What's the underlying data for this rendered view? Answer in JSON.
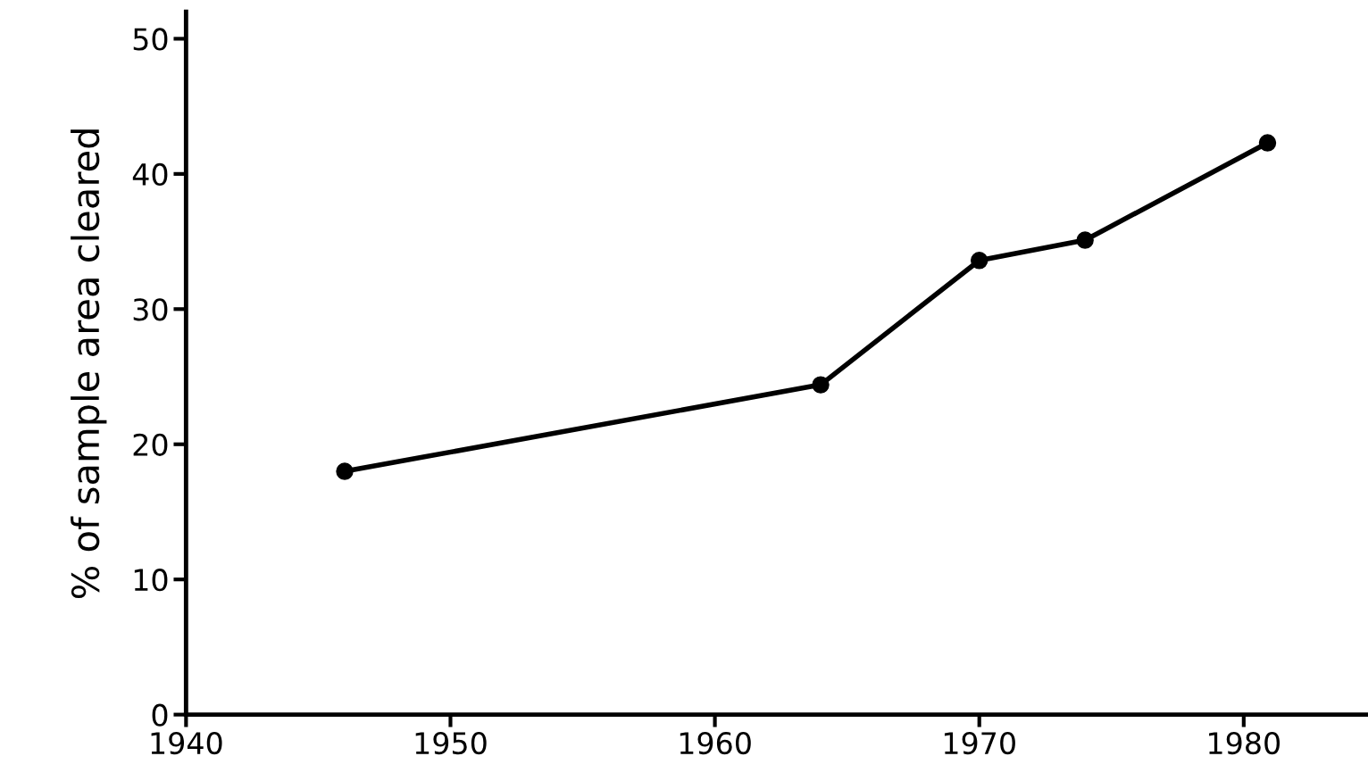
{
  "chart_data": {
    "type": "line",
    "ylabel": "% of sample area cleared",
    "x": [
      1946,
      1964,
      1970,
      1974,
      1980.9
    ],
    "series": [
      {
        "color": "#000000",
        "values": [
          18.0,
          24.4,
          33.6,
          35.1,
          42.3
        ]
      }
    ],
    "xlim": [
      1940,
      1984.7
    ],
    "xticks": [
      1940,
      1950,
      1960,
      1970,
      1980
    ],
    "ylim": [
      0,
      52
    ],
    "yticks": [
      0,
      10,
      20,
      30,
      40,
      50
    ],
    "marker": "circle",
    "line_style": "solid",
    "grid": false,
    "legend": false
  }
}
